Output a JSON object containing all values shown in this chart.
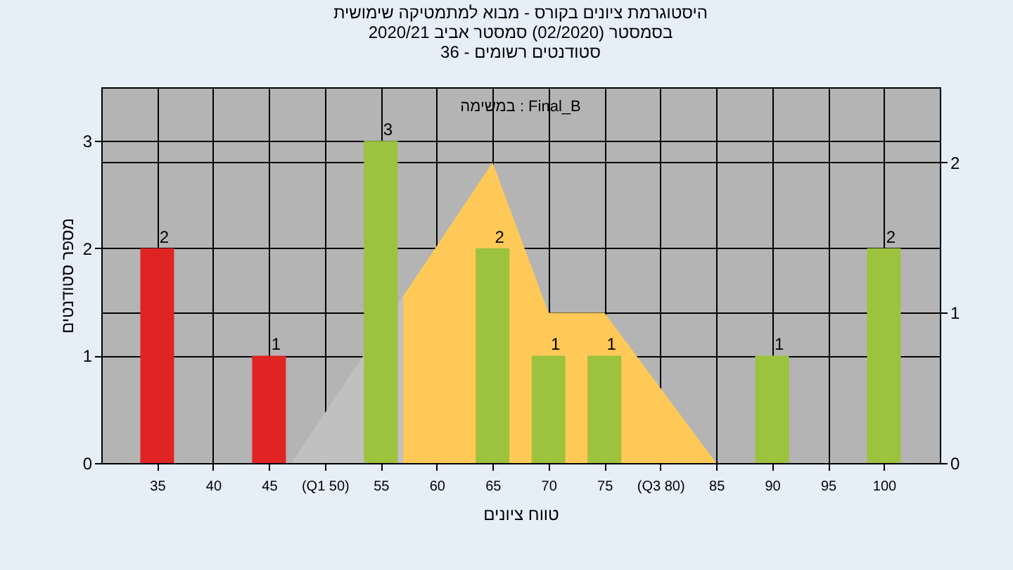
{
  "chart_data": {
    "type": "bar",
    "title": [
      "היסטוגרמת ציונים בקורס - מבוא למתמטיקה שימושית",
      "בסמסטר (02/2020) סמסטר אביב 2020/21",
      "סטודנטים רשומים - 36"
    ],
    "annotations": [
      "במשימה : Final_B"
    ],
    "xlabel": "טווח ציונים",
    "ylabel": "מספר סטודנטים",
    "series": [
      {
        "type": "area",
        "axis": "y2",
        "color": "#c0c0c0",
        "x": [
          47,
          57
        ],
        "values": [
          0,
          1.11
        ]
      },
      {
        "type": "area",
        "axis": "y2",
        "color": "#ffc957",
        "x": [
          57,
          65,
          70,
          75,
          85
        ],
        "values": [
          1.11,
          2,
          1,
          1,
          0
        ]
      },
      {
        "type": "bar",
        "x": [
          35,
          45,
          55,
          65,
          70,
          75,
          90,
          100
        ],
        "values": [
          2,
          1,
          3,
          2,
          1,
          1,
          1,
          2
        ],
        "value_labels": [
          "2",
          "1",
          "3",
          "2",
          "1",
          "1",
          "1",
          "2"
        ],
        "colors": [
          "#e02424",
          "#e02424",
          "#9cc23e",
          "#9cc23e",
          "#9cc23e",
          "#9cc23e",
          "#9cc23e",
          "#9cc23e"
        ]
      }
    ],
    "grid": true,
    "xlim": [
      30,
      105
    ],
    "xticks": [
      35,
      40,
      45,
      {
        "value": 50,
        "label": "(Q1 50)"
      },
      55,
      60,
      65,
      70,
      75,
      {
        "value": 80,
        "label": "(Q3 80)"
      },
      85,
      90,
      95,
      100
    ],
    "ylim": [
      0,
      3.5
    ],
    "yticks": [
      0,
      1,
      2,
      3
    ],
    "y2lim": [
      0,
      2.5
    ],
    "y2ticks": [
      0,
      1,
      2
    ]
  }
}
